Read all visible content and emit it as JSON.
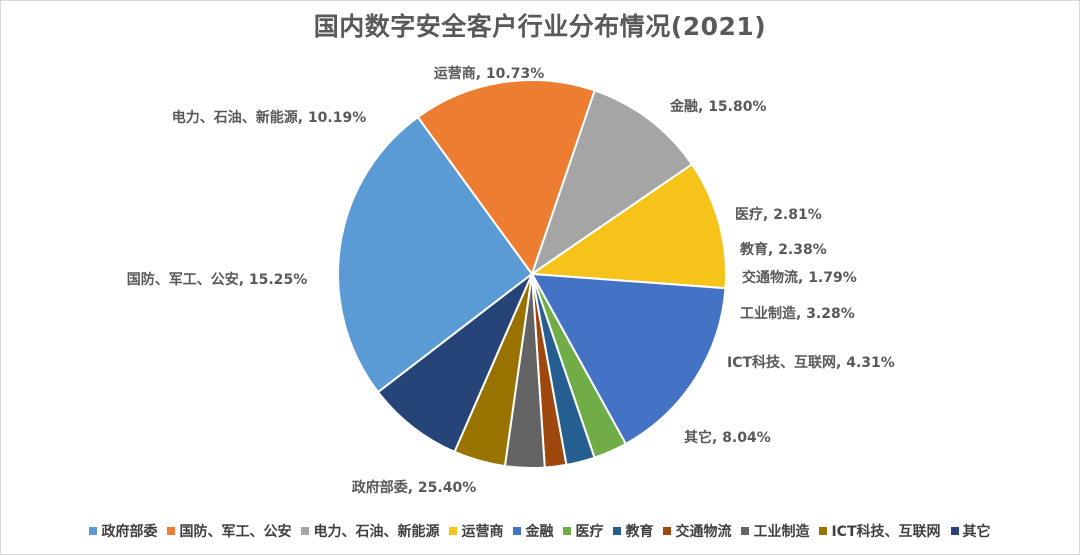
{
  "chart_data": {
    "type": "pie",
    "title": "国内数字安全客户行业分布情况(2021)",
    "slices": [
      {
        "label": "政府部委",
        "value": 25.4,
        "display": "25.40%",
        "color": "#5b9bd5"
      },
      {
        "label": "国防、军工、公安",
        "value": 15.25,
        "display": "15.25%",
        "color": "#ed7d31"
      },
      {
        "label": "电力、石油、新能源",
        "value": 10.19,
        "display": "10.19%",
        "color": "#a5a5a5"
      },
      {
        "label": "运营商",
        "value": 10.73,
        "display": "10.73%",
        "color": "#f5c319"
      },
      {
        "label": "金融",
        "value": 15.8,
        "display": "15.80%",
        "color": "#4472c4"
      },
      {
        "label": "医疗",
        "value": 2.81,
        "display": "2.81%",
        "color": "#70ad47"
      },
      {
        "label": "教育",
        "value": 2.38,
        "display": "2.38%",
        "color": "#255e91"
      },
      {
        "label": "交通物流",
        "value": 1.79,
        "display": "1.79%",
        "color": "#9e480e"
      },
      {
        "label": "工业制造",
        "value": 3.28,
        "display": "3.28%",
        "color": "#636363"
      },
      {
        "label": "ICT科技、互联网",
        "value": 4.31,
        "display": "4.31%",
        "color": "#997300"
      },
      {
        "label": "其它",
        "value": 8.04,
        "display": "8.04%",
        "color": "#264478"
      }
    ],
    "legend_position": "bottom"
  }
}
